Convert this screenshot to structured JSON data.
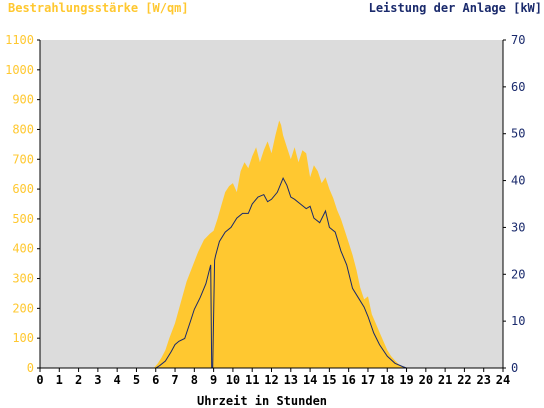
{
  "colors": {
    "left_axis": "#ffc830",
    "right_axis": "#1a2a6c",
    "area_fill": "#ffc830",
    "line": "#1a2a6c",
    "plot_bg": "#dcdcdc",
    "axis": "#000000"
  },
  "chart_data": {
    "type": "area",
    "title": "",
    "left_label": "Bestrahlungsstärke [W/qm]",
    "right_label": "Leistung der Anlage [kW]",
    "xlabel": "Uhrzeit in Stunden",
    "xlim": [
      0,
      24
    ],
    "ylim_left": [
      0,
      1100
    ],
    "ylim_right": [
      0,
      70
    ],
    "x_ticks": [
      0,
      1,
      2,
      3,
      4,
      5,
      6,
      7,
      8,
      9,
      10,
      11,
      12,
      13,
      14,
      15,
      16,
      17,
      18,
      19,
      20,
      21,
      22,
      23,
      24
    ],
    "y_left_ticks": [
      0,
      100,
      200,
      300,
      400,
      500,
      600,
      700,
      800,
      900,
      1000,
      1100
    ],
    "y_right_ticks": [
      0,
      10,
      20,
      30,
      40,
      50,
      60,
      70
    ],
    "series": [
      {
        "name": "Bestrahlungsstärke [W/qm]",
        "axis": "left",
        "style": "area",
        "x": [
          0,
          5.9,
          6.1,
          6.3,
          6.5,
          6.7,
          7.0,
          7.3,
          7.6,
          7.9,
          8.2,
          8.5,
          8.8,
          9.0,
          9.2,
          9.4,
          9.6,
          9.8,
          10.0,
          10.2,
          10.4,
          10.6,
          10.8,
          11.0,
          11.2,
          11.4,
          11.6,
          11.8,
          12.0,
          12.2,
          12.4,
          12.5,
          12.6,
          12.8,
          13.0,
          13.2,
          13.4,
          13.6,
          13.8,
          14.0,
          14.2,
          14.4,
          14.6,
          14.8,
          15.0,
          15.2,
          15.4,
          15.6,
          15.8,
          16.0,
          16.2,
          16.4,
          16.6,
          16.8,
          17.0,
          17.2,
          17.4,
          17.6,
          17.8,
          18.0,
          18.2,
          18.4,
          18.6,
          18.8,
          19.0,
          19.2,
          24
        ],
        "y": [
          0,
          0,
          15,
          35,
          60,
          100,
          150,
          220,
          290,
          340,
          390,
          430,
          450,
          460,
          500,
          545,
          590,
          610,
          620,
          590,
          660,
          690,
          670,
          710,
          740,
          690,
          730,
          760,
          720,
          780,
          830,
          815,
          780,
          740,
          700,
          740,
          690,
          730,
          720,
          640,
          680,
          660,
          620,
          640,
          600,
          570,
          530,
          500,
          460,
          420,
          380,
          330,
          270,
          230,
          240,
          180,
          150,
          120,
          90,
          60,
          40,
          25,
          12,
          5,
          0,
          0,
          0
        ]
      },
      {
        "name": "Leistung der Anlage [kW]",
        "axis": "right",
        "style": "line",
        "x": [
          0,
          6.0,
          6.2,
          6.5,
          6.8,
          7.0,
          7.2,
          7.5,
          7.8,
          8.0,
          8.3,
          8.6,
          8.85,
          8.9,
          8.95,
          9.05,
          9.1,
          9.3,
          9.6,
          9.9,
          10.2,
          10.5,
          10.8,
          11.0,
          11.3,
          11.6,
          11.8,
          12.0,
          12.3,
          12.6,
          12.8,
          13.0,
          13.2,
          13.5,
          13.8,
          14.0,
          14.2,
          14.5,
          14.8,
          15.0,
          15.3,
          15.6,
          15.9,
          16.2,
          16.5,
          16.8,
          17.0,
          17.3,
          17.6,
          18.0,
          18.4,
          18.8,
          19.0,
          24
        ],
        "y": [
          0,
          0,
          0.5,
          1.5,
          3.5,
          5,
          5.7,
          6.3,
          10,
          12.5,
          15,
          18,
          22,
          0,
          0,
          23,
          24,
          27,
          29,
          30,
          32,
          33,
          33,
          35,
          36.5,
          37,
          35.5,
          36,
          37.5,
          40.5,
          39,
          36.5,
          36,
          35,
          34,
          34.5,
          32,
          31,
          33.5,
          30,
          29,
          25,
          22,
          17,
          15,
          13,
          11,
          7.5,
          5,
          2.5,
          1,
          0.3,
          0,
          0
        ]
      }
    ]
  }
}
